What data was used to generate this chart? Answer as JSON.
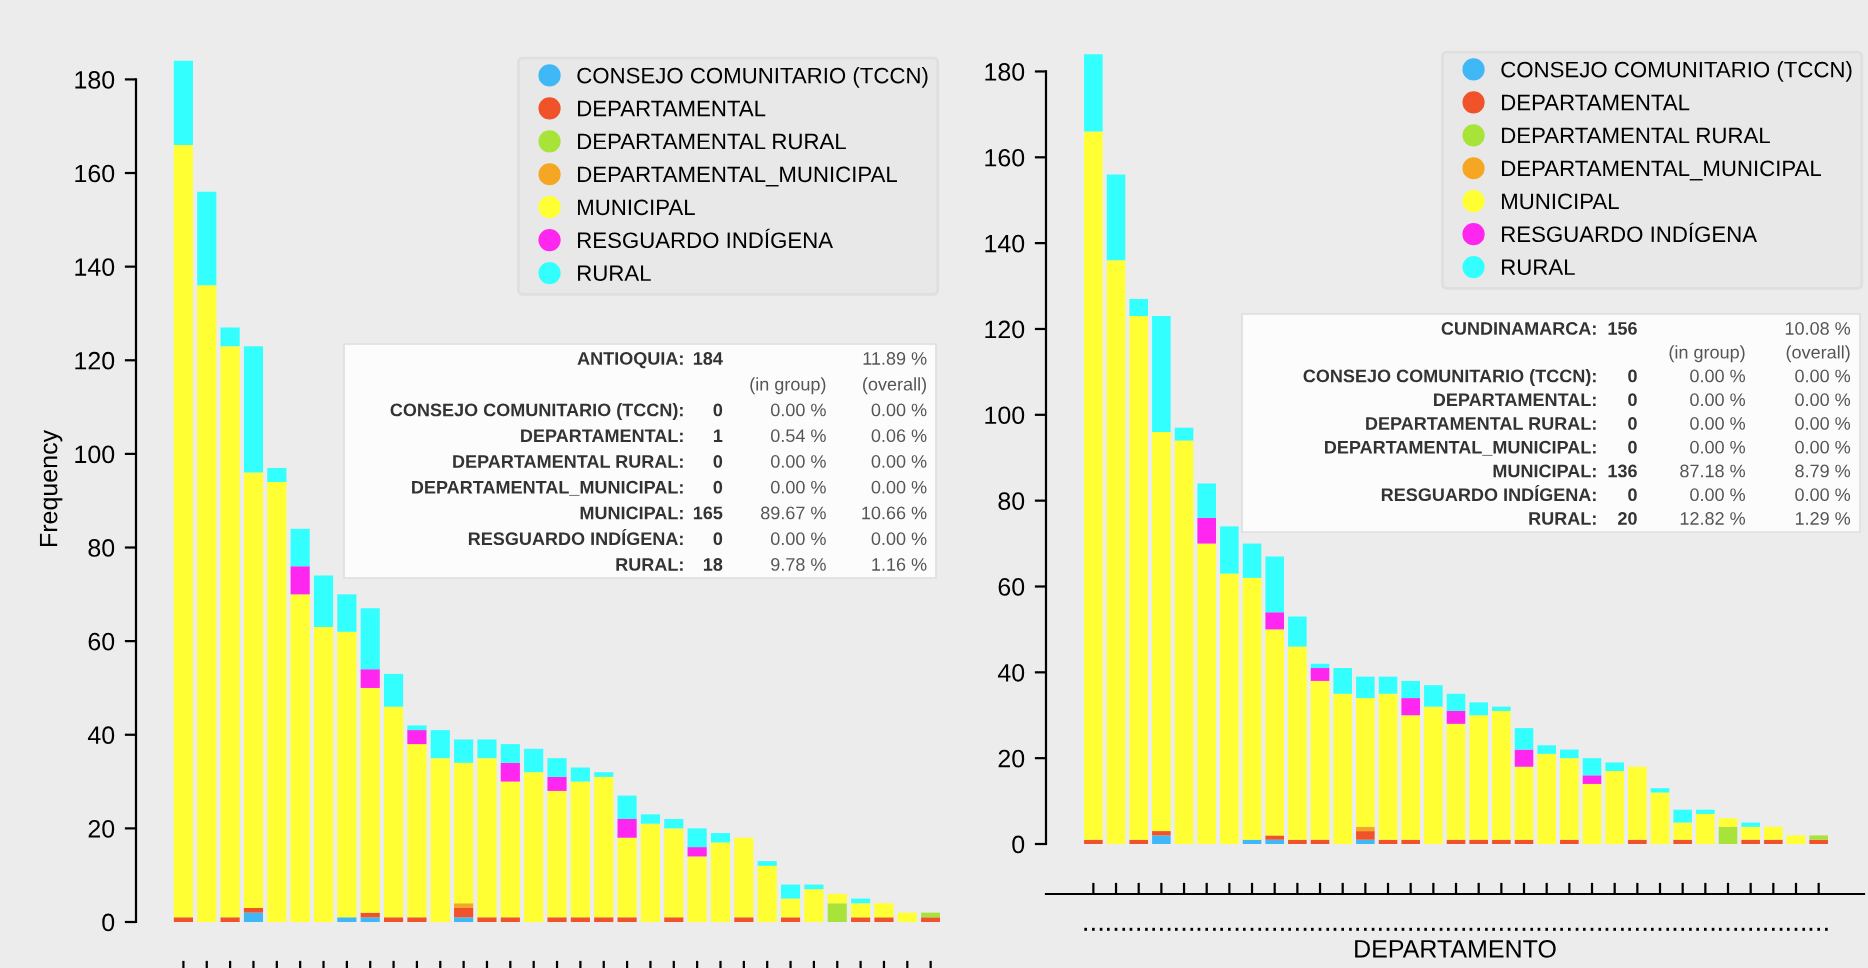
{
  "chart_data": [
    {
      "type": "bar",
      "stacked": true,
      "ylabel": "Frequency",
      "ylim": [
        0,
        185
      ],
      "yticks": [
        0,
        20,
        40,
        60,
        80,
        100,
        120,
        140,
        160,
        180
      ],
      "grid": false,
      "legend": "top right",
      "tick_labels": "y",
      "categories": [
        null,
        null,
        null,
        null,
        null,
        null,
        null,
        null,
        null,
        null,
        null,
        null,
        null,
        null,
        null,
        null,
        null,
        null,
        null,
        null,
        null,
        null,
        null,
        null,
        null,
        null,
        null,
        null,
        null,
        null,
        null,
        null,
        null
      ],
      "series": [
        {
          "name": "CONSEJO COMUNITARIO (TCCN)",
          "color": "#3fb8f5",
          "values": [
            0,
            0,
            0,
            2,
            0,
            0,
            0,
            1,
            1,
            0,
            0,
            0,
            1,
            0,
            0,
            0,
            0,
            0,
            0,
            0,
            0,
            0,
            0,
            0,
            0,
            0,
            0,
            0,
            0,
            0,
            0,
            0,
            0
          ]
        },
        {
          "name": "DEPARTAMENTAL",
          "color": "#f0522a",
          "values": [
            1,
            0,
            1,
            1,
            0,
            0,
            0,
            0,
            1,
            1,
            1,
            0,
            2,
            1,
            1,
            0,
            1,
            1,
            1,
            1,
            0,
            1,
            0,
            0,
            1,
            0,
            1,
            0,
            0,
            1,
            1,
            0,
            1
          ]
        },
        {
          "name": "DEPARTAMENTAL RURAL",
          "color": "#a8e33a",
          "values": [
            0,
            0,
            0,
            0,
            0,
            0,
            0,
            0,
            0,
            0,
            0,
            0,
            0,
            0,
            0,
            0,
            0,
            0,
            0,
            0,
            0,
            0,
            0,
            0,
            0,
            0,
            0,
            0,
            4,
            0,
            0,
            0,
            1
          ]
        },
        {
          "name": "DEPARTAMENTAL_MUNICIPAL",
          "color": "#f5a623",
          "values": [
            0,
            0,
            0,
            0,
            0,
            0,
            0,
            0,
            0,
            0,
            0,
            0,
            1,
            0,
            0,
            0,
            0,
            0,
            0,
            0,
            0,
            0,
            0,
            0,
            0,
            0,
            0,
            0,
            0,
            0,
            0,
            0,
            0
          ]
        },
        {
          "name": "MUNICIPAL",
          "color": "#ffff33",
          "values": [
            165,
            136,
            122,
            93,
            94,
            70,
            63,
            61,
            48,
            45,
            37,
            35,
            30,
            34,
            29,
            32,
            27,
            29,
            30,
            17,
            21,
            19,
            14,
            17,
            17,
            12,
            4,
            7,
            2,
            3,
            3,
            2,
            0
          ]
        },
        {
          "name": "RESGUARDO INDÍGENA",
          "color": "#ff26f0",
          "values": [
            0,
            0,
            0,
            0,
            0,
            6,
            0,
            0,
            4,
            0,
            3,
            0,
            0,
            0,
            4,
            0,
            3,
            0,
            0,
            4,
            0,
            0,
            2,
            0,
            0,
            0,
            0,
            0,
            0,
            0,
            0,
            0,
            0
          ]
        },
        {
          "name": "RURAL",
          "color": "#33ffff",
          "values": [
            18,
            20,
            4,
            27,
            3,
            8,
            11,
            8,
            13,
            7,
            1,
            6,
            5,
            4,
            4,
            5,
            4,
            3,
            1,
            5,
            2,
            2,
            4,
            2,
            0,
            1,
            3,
            1,
            0,
            1,
            0,
            0,
            0
          ]
        }
      ],
      "annotations": [
        "ANTIOQUIA:\t184\t\t11.89 %",
        "\t\t(in group)\t(overall)",
        "CONSEJO COMUNITARIO (TCCN):\t0\t0.00 %\t0.00 %",
        "DEPARTAMENTAL:\t1\t0.54 %\t0.06 %",
        "DEPARTAMENTAL RURAL:\t0\t0.00 %\t0.00 %",
        "DEPARTAMENTAL_MUNICIPAL:\t0\t0.00 %\t0.00 %",
        "MUNICIPAL:\t165\t89.67 %\t10.66 %",
        "RESGUARDO INDÍGENA:\t0\t0.00 %\t0.00 %",
        "RURAL:\t18\t9.78 %\t1.16 %"
      ]
    },
    {
      "type": "bar",
      "stacked": true,
      "xlabel": "DEPARTAMENTO",
      "ylim": [
        0,
        185
      ],
      "yticks": [
        0,
        20,
        40,
        60,
        80,
        100,
        120,
        140,
        160,
        180
      ],
      "grid": false,
      "legend": "top right",
      "categories": [
        "...",
        "...",
        "...",
        "...",
        "...",
        "...",
        "...",
        "...",
        "...",
        "...",
        "...",
        "...",
        "...",
        "...",
        "...",
        "...",
        "...",
        "...",
        "...",
        "...",
        "...",
        "...",
        "...",
        "...",
        "...",
        "...",
        "...",
        "...",
        "...",
        "...",
        "...",
        "...",
        "..."
      ],
      "series": [
        {
          "name": "CONSEJO COMUNITARIO (TCCN)",
          "color": "#3fb8f5",
          "values": [
            0,
            0,
            0,
            2,
            0,
            0,
            0,
            1,
            1,
            0,
            0,
            0,
            1,
            0,
            0,
            0,
            0,
            0,
            0,
            0,
            0,
            0,
            0,
            0,
            0,
            0,
            0,
            0,
            0,
            0,
            0,
            0,
            0
          ]
        },
        {
          "name": "DEPARTAMENTAL",
          "color": "#f0522a",
          "values": [
            1,
            0,
            1,
            1,
            0,
            0,
            0,
            0,
            1,
            1,
            1,
            0,
            2,
            1,
            1,
            0,
            1,
            1,
            1,
            1,
            0,
            1,
            0,
            0,
            1,
            0,
            1,
            0,
            0,
            1,
            1,
            0,
            1
          ]
        },
        {
          "name": "DEPARTAMENTAL RURAL",
          "color": "#a8e33a",
          "values": [
            0,
            0,
            0,
            0,
            0,
            0,
            0,
            0,
            0,
            0,
            0,
            0,
            0,
            0,
            0,
            0,
            0,
            0,
            0,
            0,
            0,
            0,
            0,
            0,
            0,
            0,
            0,
            0,
            4,
            0,
            0,
            0,
            1
          ]
        },
        {
          "name": "DEPARTAMENTAL_MUNICIPAL",
          "color": "#f5a623",
          "values": [
            0,
            0,
            0,
            0,
            0,
            0,
            0,
            0,
            0,
            0,
            0,
            0,
            1,
            0,
            0,
            0,
            0,
            0,
            0,
            0,
            0,
            0,
            0,
            0,
            0,
            0,
            0,
            0,
            0,
            0,
            0,
            0,
            0
          ]
        },
        {
          "name": "MUNICIPAL",
          "color": "#ffff33",
          "values": [
            165,
            136,
            122,
            93,
            94,
            70,
            63,
            61,
            48,
            45,
            37,
            35,
            30,
            34,
            29,
            32,
            27,
            29,
            30,
            17,
            21,
            19,
            14,
            17,
            17,
            12,
            4,
            7,
            2,
            3,
            3,
            2,
            0
          ]
        },
        {
          "name": "RESGUARDO INDÍGENA",
          "color": "#ff26f0",
          "values": [
            0,
            0,
            0,
            0,
            0,
            6,
            0,
            0,
            4,
            0,
            3,
            0,
            0,
            0,
            4,
            0,
            3,
            0,
            0,
            4,
            0,
            0,
            2,
            0,
            0,
            0,
            0,
            0,
            0,
            0,
            0,
            0,
            0
          ]
        },
        {
          "name": "RURAL",
          "color": "#33ffff",
          "values": [
            18,
            20,
            4,
            27,
            3,
            8,
            11,
            8,
            13,
            7,
            1,
            6,
            5,
            4,
            4,
            5,
            4,
            3,
            1,
            5,
            2,
            2,
            4,
            2,
            0,
            1,
            3,
            1,
            0,
            1,
            0,
            0,
            0
          ]
        }
      ],
      "annotations": [
        "CUNDINAMARCA:\t156\t\t10.08 %",
        "\t\t(in group)\t(overall)",
        "CONSEJO COMUNITARIO (TCCN):\t0\t0.00 %\t0.00 %",
        "DEPARTAMENTAL:\t0\t0.00 %\t0.00 %",
        "DEPARTAMENTAL RURAL:\t0\t0.00 %\t0.00 %",
        "DEPARTAMENTAL_MUNICIPAL:\t0\t0.00 %\t0.00 %",
        "MUNICIPAL:\t136\t87.18 %\t8.79 %",
        "RESGUARDO INDÍGENA:\t0\t0.00 %\t0.00 %",
        "RURAL:\t20\t12.82 %\t1.29 %"
      ]
    }
  ]
}
